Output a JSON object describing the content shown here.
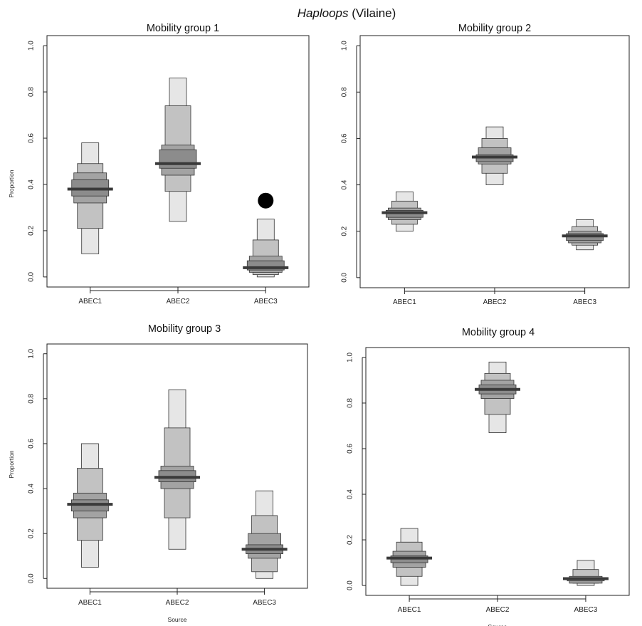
{
  "figure": {
    "title_italic": "Haploops",
    "title_rest": " (Vilaine)"
  },
  "chart_data": [
    {
      "type": "boxplot",
      "title": "Mobility group 1",
      "xlabel": "",
      "ylabel": "Proportion",
      "ylim": [
        0,
        1
      ],
      "yticks": [
        "0.0",
        "0.2",
        "0.4",
        "0.6",
        "0.8",
        "1.0"
      ],
      "categories": [
        "ABEC1",
        "ABEC2",
        "ABEC3"
      ],
      "series": [
        {
          "category": "ABEC1",
          "median": 0.38,
          "ci50": [
            0.35,
            0.42
          ],
          "ci75": [
            0.32,
            0.45
          ],
          "ci95": [
            0.21,
            0.49
          ],
          "ci99": [
            0.1,
            0.58
          ]
        },
        {
          "category": "ABEC2",
          "median": 0.49,
          "ci50": [
            0.47,
            0.55
          ],
          "ci75": [
            0.44,
            0.57
          ],
          "ci95": [
            0.37,
            0.74
          ],
          "ci99": [
            0.24,
            0.86
          ]
        },
        {
          "category": "ABEC3",
          "median": 0.04,
          "ci50": [
            0.03,
            0.07
          ],
          "ci75": [
            0.02,
            0.09
          ],
          "ci95": [
            0.01,
            0.16
          ],
          "ci99": [
            0.0,
            0.25
          ]
        }
      ],
      "marker": {
        "category": "ABEC3",
        "value": 0.33
      }
    },
    {
      "type": "boxplot",
      "title": "Mobility group 2",
      "xlabel": "",
      "ylabel": "",
      "ylim": [
        0,
        1
      ],
      "yticks": [
        "0.0",
        "0.2",
        "0.4",
        "0.6",
        "0.8",
        "1.0"
      ],
      "categories": [
        "ABEC1",
        "ABEC2",
        "ABEC3"
      ],
      "series": [
        {
          "category": "ABEC1",
          "median": 0.28,
          "ci50": [
            0.26,
            0.29
          ],
          "ci75": [
            0.25,
            0.3
          ],
          "ci95": [
            0.23,
            0.33
          ],
          "ci99": [
            0.2,
            0.37
          ]
        },
        {
          "category": "ABEC2",
          "median": 0.52,
          "ci50": [
            0.5,
            0.53
          ],
          "ci75": [
            0.49,
            0.56
          ],
          "ci95": [
            0.45,
            0.6
          ],
          "ci99": [
            0.4,
            0.65
          ]
        },
        {
          "category": "ABEC3",
          "median": 0.18,
          "ci50": [
            0.16,
            0.19
          ],
          "ci75": [
            0.15,
            0.2
          ],
          "ci95": [
            0.14,
            0.22
          ],
          "ci99": [
            0.12,
            0.25
          ]
        }
      ]
    },
    {
      "type": "boxplot",
      "title": "Mobility group 3",
      "xlabel": "Source",
      "ylabel": "Proportion",
      "ylim": [
        0,
        1
      ],
      "yticks": [
        "0.0",
        "0.2",
        "0.4",
        "0.6",
        "0.8",
        "1.0"
      ],
      "categories": [
        "ABEC1",
        "ABEC2",
        "ABEC3"
      ],
      "series": [
        {
          "category": "ABEC1",
          "median": 0.33,
          "ci50": [
            0.3,
            0.35
          ],
          "ci75": [
            0.27,
            0.38
          ],
          "ci95": [
            0.17,
            0.49
          ],
          "ci99": [
            0.05,
            0.6
          ]
        },
        {
          "category": "ABEC2",
          "median": 0.45,
          "ci50": [
            0.43,
            0.48
          ],
          "ci75": [
            0.4,
            0.5
          ],
          "ci95": [
            0.27,
            0.67
          ],
          "ci99": [
            0.13,
            0.84
          ]
        },
        {
          "category": "ABEC3",
          "median": 0.13,
          "ci50": [
            0.11,
            0.15
          ],
          "ci75": [
            0.09,
            0.2
          ],
          "ci95": [
            0.03,
            0.28
          ],
          "ci99": [
            0.0,
            0.39
          ]
        }
      ]
    },
    {
      "type": "boxplot",
      "title": "Mobility group 4",
      "xlabel": "Source",
      "ylabel": "",
      "ylim": [
        0,
        1
      ],
      "yticks": [
        "0.0",
        "0.2",
        "0.4",
        "0.6",
        "0.8",
        "1.0"
      ],
      "categories": [
        "ABEC1",
        "ABEC2",
        "ABEC3"
      ],
      "series": [
        {
          "category": "ABEC1",
          "median": 0.12,
          "ci50": [
            0.1,
            0.13
          ],
          "ci75": [
            0.08,
            0.15
          ],
          "ci95": [
            0.04,
            0.19
          ],
          "ci99": [
            0.0,
            0.25
          ]
        },
        {
          "category": "ABEC2",
          "median": 0.86,
          "ci50": [
            0.84,
            0.88
          ],
          "ci75": [
            0.82,
            0.9
          ],
          "ci95": [
            0.75,
            0.93
          ],
          "ci99": [
            0.67,
            0.98
          ]
        },
        {
          "category": "ABEC3",
          "median": 0.03,
          "ci50": [
            0.02,
            0.03
          ],
          "ci75": [
            0.01,
            0.04
          ],
          "ci95": [
            0.01,
            0.07
          ],
          "ci99": [
            0.0,
            0.11
          ]
        }
      ]
    }
  ],
  "colors": {
    "ci99": "#e6e6e6",
    "ci95": "#c2c2c2",
    "ci75": "#a3a3a3",
    "ci50": "#8c8c8c",
    "median": "#3a3a3a",
    "marker": "#000000",
    "frame": "#222222"
  }
}
